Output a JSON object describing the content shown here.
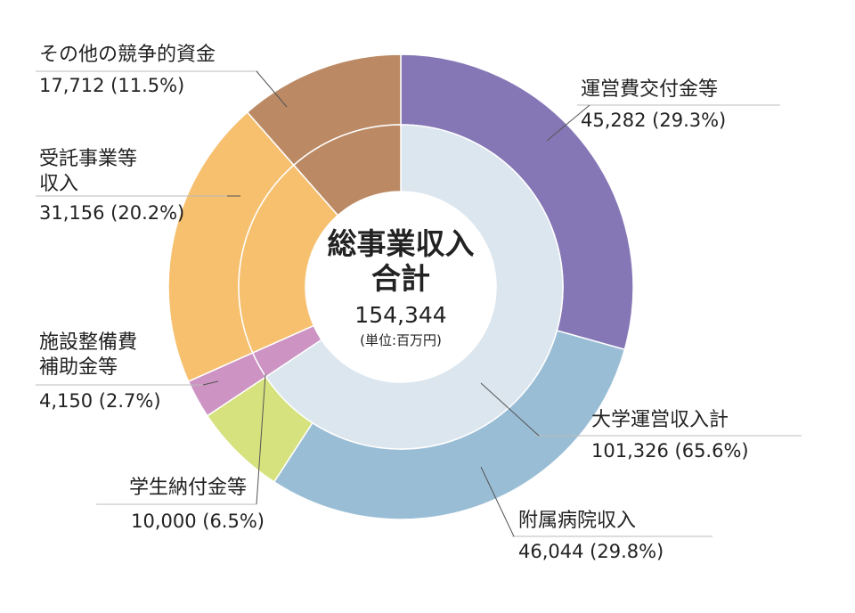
{
  "chart_data": {
    "type": "pie",
    "style": "nested-donut",
    "center": {
      "title_line1": "総事業収入",
      "title_line2": "合計",
      "total": "154,344",
      "unit": "(単位:百万円)"
    },
    "outer_ring": [
      {
        "key": "unei",
        "label_lines": [
          "運営費交付金等"
        ],
        "value": 45282,
        "value_text": "45,282",
        "percent_text": "(29.3%)",
        "color": "#8577b5"
      },
      {
        "key": "byoin",
        "label_lines": [
          "附属病院収入"
        ],
        "value": 46044,
        "value_text": "46,044",
        "percent_text": "(29.8%)",
        "color": "#9abdd6"
      },
      {
        "key": "gakusei",
        "label_lines": [
          "学生納付金等"
        ],
        "value": 10000,
        "value_text": "10,000",
        "percent_text": "(6.5%)",
        "color": "#d6e27e"
      },
      {
        "key": "shisetsu",
        "label_lines": [
          "施設整備費",
          "補助金等"
        ],
        "value": 4150,
        "value_text": "4,150",
        "percent_text": "(2.7%)",
        "color": "#cc93c3"
      },
      {
        "key": "jutaku",
        "label_lines": [
          "受託事業等",
          "収入"
        ],
        "value": 31156,
        "value_text": "31,156",
        "percent_text": "(20.2%)",
        "color": "#f6c06f"
      },
      {
        "key": "sonota",
        "label_lines": [
          "その他の競争的資金"
        ],
        "value": 17712,
        "value_text": "17,712",
        "percent_text": "(11.5%)",
        "color": "#bb8a65"
      }
    ],
    "inner_ring": [
      {
        "key": "daigaku",
        "label_lines": [
          "大学運営収入計"
        ],
        "value": 101326,
        "value_text": "101,326",
        "percent_text": "(65.6%)",
        "color": "#dce6ee"
      },
      {
        "key": "shisetsu_in",
        "value": 4150,
        "color": "#cc93c3"
      },
      {
        "key": "jutaku_in",
        "value": 31156,
        "color": "#f6c06f"
      },
      {
        "key": "sonota_in",
        "value": 17712,
        "color": "#bb8a65"
      }
    ]
  }
}
